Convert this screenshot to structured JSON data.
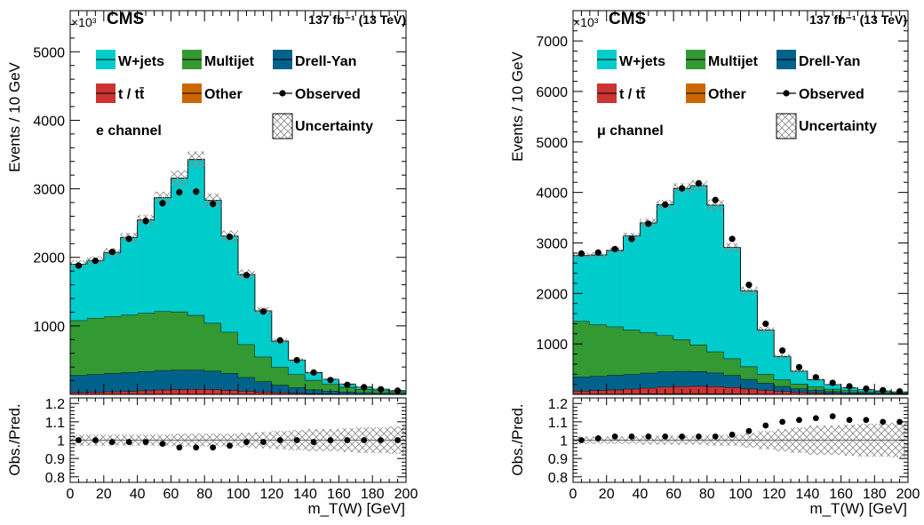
{
  "figure": {
    "colors": {
      "wjets": "#00CCCC",
      "multijet": "#339933",
      "drellyan": "#00628B",
      "ttbar": "#CC3333",
      "other": "#CC6600",
      "observed": "#000000",
      "uncertainty_hatch": "#888888"
    },
    "legend_labels": {
      "wjets": "W+jets",
      "multijet": "Multijet",
      "drellyan": "Drell-Yan",
      "ttbar": "t / tt̄",
      "other": "Other",
      "observed": "Observed",
      "uncertainty": "Uncertainty"
    },
    "cms_label": "CMS",
    "lumi_label": "137 fb⁻¹ (13 TeV)",
    "y_multiplier": "×10³",
    "ylabel": "Events / 10 GeV",
    "ratio_ylabel": "Obs./Pred.",
    "xlabel": "m_T(W) [GeV]"
  },
  "chart_data": [
    {
      "type": "area",
      "channel_label": "e channel",
      "x_edges": [
        0,
        10,
        20,
        30,
        40,
        50,
        60,
        70,
        80,
        90,
        100,
        110,
        120,
        130,
        140,
        150,
        160,
        170,
        180,
        190,
        200
      ],
      "xlim": [
        0,
        200
      ],
      "ylim": [
        0,
        5600
      ],
      "yticks": [
        1000,
        2000,
        3000,
        4000,
        5000
      ],
      "xticks": [
        0,
        20,
        40,
        60,
        80,
        100,
        120,
        140,
        160,
        180,
        200
      ],
      "stack": {
        "other": [
          5,
          5,
          6,
          6,
          6,
          7,
          7,
          7,
          7,
          6,
          5,
          4,
          3,
          3,
          2,
          2,
          1,
          1,
          1,
          1
        ],
        "ttbar": [
          25,
          30,
          35,
          40,
          50,
          60,
          65,
          70,
          65,
          55,
          45,
          35,
          25,
          18,
          12,
          9,
          6,
          5,
          4,
          3
        ],
        "drellyan": [
          250,
          260,
          270,
          275,
          280,
          285,
          285,
          280,
          270,
          250,
          200,
          150,
          110,
          80,
          55,
          40,
          30,
          22,
          16,
          12
        ],
        "multijet": [
          800,
          820,
          830,
          840,
          850,
          860,
          850,
          800,
          700,
          600,
          480,
          360,
          260,
          190,
          140,
          100,
          70,
          50,
          36,
          26
        ],
        "wjets": [
          820,
          840,
          930,
          1130,
          1360,
          1660,
          1950,
          2270,
          1790,
          1400,
          1020,
          670,
          380,
          210,
          110,
          70,
          45,
          30,
          20,
          14
        ]
      },
      "observed": [
        1880,
        1950,
        2080,
        2270,
        2530,
        2790,
        2950,
        2960,
        2780,
        2300,
        1740,
        1210,
        790,
        500,
        320,
        210,
        140,
        105,
        75,
        55
      ],
      "observed_err": [
        40,
        40,
        40,
        45,
        48,
        50,
        52,
        52,
        50,
        46,
        40,
        34,
        28,
        22,
        18,
        14,
        12,
        10,
        9,
        7
      ],
      "unc_frac": [
        0.03,
        0.03,
        0.03,
        0.03,
        0.03,
        0.03,
        0.035,
        0.035,
        0.035,
        0.035,
        0.04,
        0.045,
        0.05,
        0.055,
        0.06,
        0.06,
        0.065,
        0.07,
        0.07,
        0.075
      ],
      "ratio": {
        "ylim": [
          0.77,
          1.23
        ],
        "yticks": [
          0.8,
          0.9,
          1.0,
          1.1,
          1.2
        ],
        "values": [
          1.0,
          1.0,
          0.99,
          0.99,
          0.99,
          0.98,
          0.96,
          0.96,
          0.96,
          0.97,
          0.99,
          0.99,
          1.0,
          1.0,
          0.99,
          1.0,
          1.0,
          1.0,
          1.0,
          1.0
        ]
      }
    },
    {
      "type": "area",
      "channel_label": "μ channel",
      "x_edges": [
        0,
        10,
        20,
        30,
        40,
        50,
        60,
        70,
        80,
        90,
        100,
        110,
        120,
        130,
        140,
        150,
        160,
        170,
        180,
        190,
        200
      ],
      "xlim": [
        0,
        200
      ],
      "ylim": [
        0,
        7600
      ],
      "yticks": [
        1000,
        2000,
        3000,
        4000,
        5000,
        6000,
        7000
      ],
      "xticks": [
        0,
        20,
        40,
        60,
        80,
        100,
        120,
        140,
        160,
        180,
        200
      ],
      "stack": {
        "other": [
          10,
          11,
          12,
          14,
          16,
          18,
          20,
          20,
          18,
          15,
          12,
          9,
          7,
          5,
          4,
          3,
          2,
          2,
          1,
          1
        ],
        "ttbar": [
          60,
          70,
          80,
          95,
          110,
          130,
          140,
          145,
          140,
          125,
          100,
          75,
          55,
          40,
          28,
          20,
          14,
          10,
          8,
          6
        ],
        "drellyan": [
          280,
          280,
          290,
          290,
          300,
          300,
          300,
          290,
          270,
          240,
          190,
          140,
          100,
          70,
          50,
          36,
          26,
          19,
          14,
          10
        ],
        "multijet": [
          1100,
          1020,
          960,
          880,
          800,
          720,
          630,
          530,
          420,
          330,
          250,
          180,
          130,
          95,
          70,
          50,
          36,
          26,
          19,
          14
        ],
        "wjets": [
          1300,
          1380,
          1510,
          1860,
          2170,
          2590,
          2990,
          3150,
          2900,
          2200,
          1500,
          870,
          460,
          250,
          140,
          85,
          55,
          38,
          26,
          19
        ]
      },
      "observed": [
        2790,
        2810,
        2880,
        3080,
        3380,
        3760,
        4080,
        4180,
        3850,
        3080,
        2170,
        1400,
        870,
        540,
        340,
        230,
        160,
        115,
        85,
        60
      ],
      "observed_err": [
        50,
        50,
        52,
        55,
        58,
        60,
        63,
        64,
        62,
        55,
        46,
        37,
        29,
        23,
        18,
        15,
        12,
        11,
        9,
        8
      ],
      "unc_frac": [
        0.02,
        0.02,
        0.02,
        0.02,
        0.025,
        0.025,
        0.025,
        0.025,
        0.03,
        0.03,
        0.04,
        0.05,
        0.06,
        0.07,
        0.08,
        0.08,
        0.085,
        0.09,
        0.09,
        0.095
      ],
      "ratio": {
        "ylim": [
          0.77,
          1.23
        ],
        "yticks": [
          0.8,
          0.9,
          1.0,
          1.1,
          1.2
        ],
        "values": [
          1.0,
          1.01,
          1.02,
          1.02,
          1.02,
          1.02,
          1.02,
          1.02,
          1.02,
          1.03,
          1.05,
          1.08,
          1.1,
          1.11,
          1.12,
          1.13,
          1.11,
          1.11,
          1.1,
          1.1
        ]
      }
    }
  ]
}
